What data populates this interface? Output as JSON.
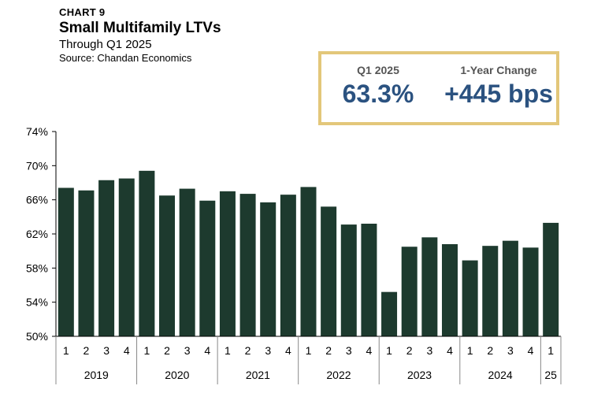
{
  "header": {
    "chart_number": "CHART 9",
    "title": "Small Multifamily LTVs",
    "subtitle": "Through Q1 2025",
    "source": "Source: Chandan Economics"
  },
  "kpis": [
    {
      "label": "Q1 2025",
      "value": "63.3%"
    },
    {
      "label": "1-Year Change",
      "value": "+445 bps"
    }
  ],
  "colors": {
    "bar": "#1d3a2e",
    "kpi_border": "#e3c77a",
    "kpi_value": "#2b5280"
  },
  "chart_data": {
    "type": "bar",
    "ylim": [
      50,
      74
    ],
    "yticks": [
      "50%",
      "54%",
      "58%",
      "62%",
      "66%",
      "70%",
      "74%"
    ],
    "ytick_values": [
      50,
      54,
      58,
      62,
      66,
      70,
      74
    ],
    "categories": [
      "1",
      "2",
      "3",
      "4",
      "1",
      "2",
      "3",
      "4",
      "1",
      "2",
      "3",
      "4",
      "1",
      "2",
      "3",
      "4",
      "1",
      "2",
      "3",
      "4",
      "1",
      "2",
      "3",
      "4",
      "1"
    ],
    "groups": [
      {
        "label": "2019",
        "count": 4
      },
      {
        "label": "2020",
        "count": 4
      },
      {
        "label": "2021",
        "count": 4
      },
      {
        "label": "2022",
        "count": 4
      },
      {
        "label": "2023",
        "count": 4
      },
      {
        "label": "2024",
        "count": 4
      },
      {
        "label": "25",
        "count": 1
      }
    ],
    "values": [
      67.4,
      67.1,
      68.3,
      68.5,
      69.4,
      66.5,
      67.3,
      65.9,
      67.0,
      66.7,
      65.7,
      66.6,
      67.5,
      65.2,
      63.1,
      63.2,
      55.2,
      60.5,
      61.6,
      60.8,
      58.9,
      60.6,
      61.2,
      60.4,
      63.3
    ],
    "grid": false
  }
}
